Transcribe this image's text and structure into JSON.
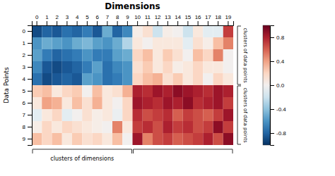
{
  "chart_data": {
    "type": "heatmap",
    "title": "Dimensions",
    "ylabel": "Data Points",
    "x": [
      "0",
      "1",
      "2",
      "3",
      "4",
      "5",
      "6",
      "7",
      "8",
      "9",
      "10",
      "11",
      "12",
      "13",
      "14",
      "15",
      "16",
      "17",
      "18",
      "19"
    ],
    "y": [
      "0",
      "1",
      "2",
      "3",
      "4",
      "5",
      "6",
      "7",
      "8",
      "9"
    ],
    "values": [
      [
        -0.9,
        -0.8,
        -0.85,
        -0.75,
        -0.8,
        -0.7,
        -0.85,
        -0.5,
        -0.8,
        -0.65,
        0.05,
        0.15,
        -0.2,
        0.05,
        0.0,
        -0.2,
        0.1,
        -0.1,
        -0.1,
        0.7
      ],
      [
        -0.6,
        -0.5,
        -0.55,
        -0.6,
        -0.5,
        -0.45,
        -0.55,
        -0.6,
        -0.5,
        -0.3,
        0.1,
        0.0,
        0.1,
        0.1,
        0.1,
        -0.1,
        0.15,
        0.05,
        0.3,
        0.5
      ],
      [
        -0.55,
        -0.7,
        -0.8,
        -0.75,
        -0.7,
        -0.6,
        -0.7,
        -0.7,
        -0.55,
        -0.5,
        0.2,
        0.3,
        0.1,
        0.25,
        0.15,
        0.0,
        0.3,
        0.2,
        0.5,
        0.0
      ],
      [
        -0.65,
        -0.85,
        -0.9,
        -0.85,
        -0.8,
        -0.7,
        -0.55,
        -0.75,
        -0.65,
        -0.6,
        0.15,
        0.25,
        0.1,
        0.2,
        0.05,
        0.1,
        0.2,
        0.1,
        0.1,
        0.0
      ],
      [
        -0.75,
        -0.9,
        -0.85,
        -0.8,
        -0.85,
        -0.55,
        -0.6,
        -0.75,
        -0.7,
        -0.6,
        0.2,
        0.3,
        0.35,
        0.15,
        0.25,
        0.1,
        0.2,
        0.0,
        0.2,
        0.1
      ],
      [
        0.25,
        0.3,
        0.1,
        0.2,
        0.25,
        0.0,
        0.3,
        0.1,
        0.15,
        0.35,
        0.8,
        0.75,
        0.85,
        0.8,
        0.9,
        0.85,
        0.8,
        0.75,
        0.85,
        0.8
      ],
      [
        0.1,
        0.4,
        0.35,
        0.1,
        0.3,
        0.15,
        0.35,
        0.1,
        0.0,
        0.2,
        0.85,
        0.8,
        0.75,
        0.85,
        0.8,
        0.9,
        0.75,
        0.8,
        0.85,
        0.7
      ],
      [
        -0.1,
        0.1,
        0.2,
        -0.1,
        0.0,
        0.15,
        0.05,
        0.1,
        -0.05,
        0.2,
        0.75,
        0.65,
        0.7,
        0.75,
        0.6,
        0.7,
        0.65,
        0.6,
        0.7,
        0.85
      ],
      [
        0.05,
        0.2,
        0.1,
        0.2,
        0.15,
        0.1,
        0.05,
        0.0,
        0.5,
        0.1,
        0.7,
        0.75,
        0.65,
        0.8,
        0.7,
        0.75,
        0.65,
        0.7,
        0.9,
        0.7
      ],
      [
        0.3,
        0.2,
        0.3,
        0.1,
        0.25,
        0.15,
        0.2,
        0.1,
        0.3,
        0.0,
        0.85,
        0.5,
        0.65,
        0.7,
        0.6,
        0.65,
        0.7,
        0.8,
        0.65,
        0.9
      ]
    ],
    "zlim": [
      -1.0,
      1.0
    ],
    "zticks": [
      0.8,
      0.4,
      {
        "value": 0.0,
        "label": "0.0"
      },
      -0.4,
      -0.8
    ],
    "x_groups": [
      {
        "from": "0",
        "to": "9",
        "label": "clusters of dimensions"
      },
      {
        "from": "10",
        "to": "19"
      }
    ],
    "y_groups": [
      {
        "from": "0",
        "to": "4",
        "label": "clusters of data points"
      },
      {
        "from": "5",
        "to": "9",
        "label": "clusters of data points"
      }
    ]
  }
}
